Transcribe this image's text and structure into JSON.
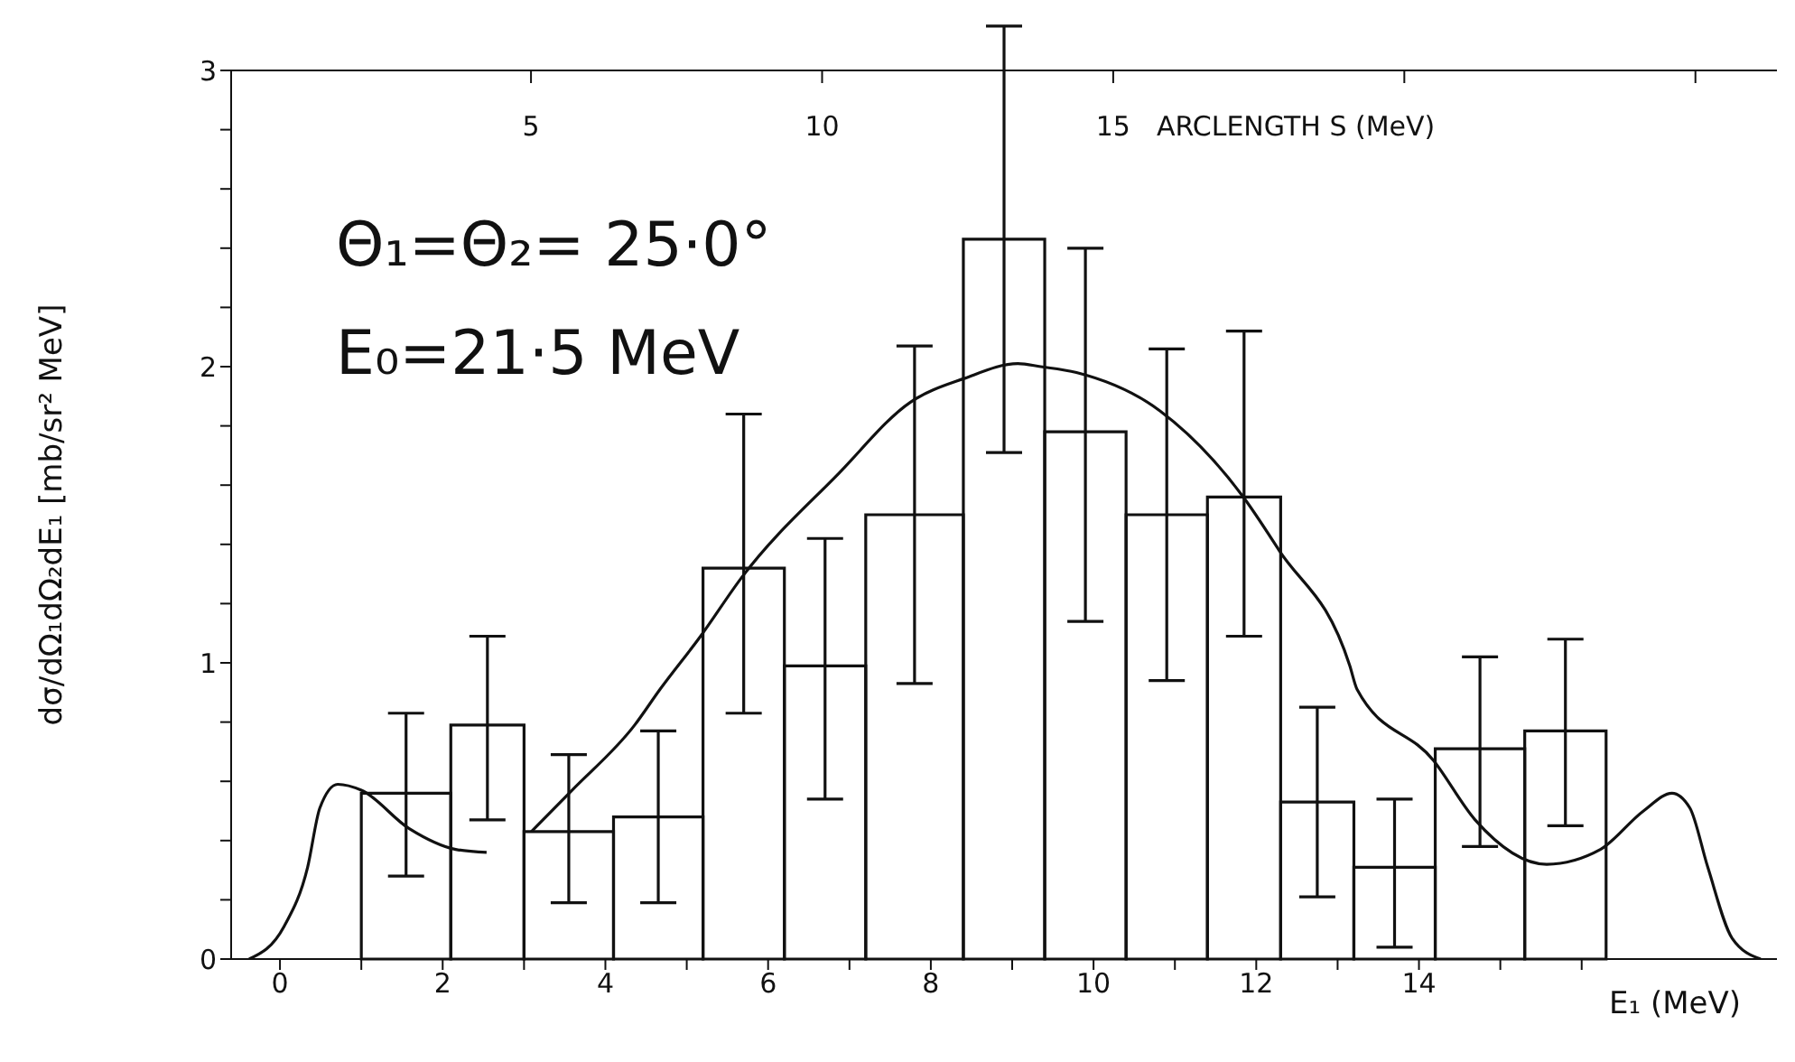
{
  "chart_data": {
    "type": "histogram",
    "xlabel": "E₁ (MeV)",
    "x2label": "ARCLENGTH S (MeV)",
    "ylabel": "dσ/dΩ₁dΩ₂dE₁ [mb/sr² MeV]",
    "annotations": [
      "Θ₁=Θ₂= 25·0°",
      "E₀=21·5 MeV"
    ],
    "series": [
      {
        "type": "histogram",
        "color": "#111111",
        "bins": [
          1.0,
          2.1,
          3.0,
          4.1,
          5.2,
          6.2,
          7.2,
          8.4,
          9.4,
          10.4,
          11.4,
          12.3,
          13.2,
          14.2,
          15.3,
          16.3
        ],
        "values": [
          0.56,
          0.79,
          0.43,
          0.48,
          1.32,
          0.99,
          1.5,
          2.43,
          1.78,
          1.5,
          1.56,
          0.53,
          0.31,
          0.71,
          0.77
        ],
        "errors": [
          [
            0.28,
            0.83
          ],
          [
            0.47,
            1.09
          ],
          [
            0.19,
            0.69
          ],
          [
            0.19,
            0.77
          ],
          [
            0.83,
            1.84
          ],
          [
            0.54,
            1.42
          ],
          [
            0.93,
            2.07
          ],
          [
            1.71,
            3.15
          ],
          [
            1.14,
            2.4
          ],
          [
            0.94,
            2.06
          ],
          [
            1.09,
            2.12
          ],
          [
            0.21,
            0.85
          ],
          [
            0.04,
            0.54
          ],
          [
            0.38,
            1.02
          ],
          [
            0.45,
            1.08
          ]
        ]
      },
      {
        "type": "line",
        "color": "#111111",
        "x": [
          -0.38,
          0.05,
          0.34,
          0.49,
          0.71,
          1.0,
          1.59,
          2.16,
          2.54,
          2.8,
          3.09,
          3.59,
          4.36,
          4.67,
          5.17,
          5.68,
          6.87,
          7.75,
          8.41,
          9.07,
          9.35,
          9.79,
          10.82,
          11.84,
          12.28,
          13.15,
          13.24,
          14.18,
          14.69,
          15.57,
          16.23,
          16.76,
          17.11,
          17.33,
          17.55,
          17.85,
          18.2
        ],
        "values": [
          0,
          0.11,
          0.31,
          0.51,
          0.59,
          0.57,
          0.44,
          0.37,
          0.36,
          null,
          0.43,
          0.57,
          0.79,
          0.91,
          1.09,
          1.29,
          1.64,
          1.88,
          1.96,
          2.01,
          2.0,
          1.98,
          1.85,
          1.56,
          1.38,
          0.99,
          0.91,
          0.67,
          0.47,
          0.32,
          0.37,
          0.5,
          0.56,
          0.51,
          0.31,
          0.07,
          0
        ]
      }
    ],
    "xlim": [
      -0.6,
      18.4
    ],
    "xticks": [
      0,
      {
        "value": 1,
        "label": null
      },
      2,
      {
        "value": 3,
        "label": null
      },
      4,
      {
        "value": 5,
        "label": null
      },
      6,
      {
        "value": 7,
        "label": null
      },
      8,
      {
        "value": 9,
        "label": null
      },
      10,
      {
        "value": 11,
        "label": null
      },
      12,
      {
        "value": 13,
        "label": null
      },
      14,
      {
        "value": 15,
        "label": null
      },
      {
        "value": 16,
        "label": null
      }
    ],
    "x2lim": [
      -0.15,
      26.4
    ],
    "x2ticks": [
      5,
      10,
      15,
      {
        "value": 20,
        "label": null
      },
      {
        "value": 25,
        "label": null
      }
    ],
    "ylim": [
      0,
      3
    ],
    "yticks": [
      0,
      {
        "value": 0.2,
        "label": null
      },
      {
        "value": 0.4,
        "label": null
      },
      {
        "value": 0.6,
        "label": null
      },
      {
        "value": 0.8,
        "label": null
      },
      1,
      {
        "value": 1.2,
        "label": null
      },
      {
        "value": 1.4,
        "label": null
      },
      {
        "value": 1.6,
        "label": null
      },
      {
        "value": 1.8,
        "label": null
      },
      2,
      {
        "value": 2.2,
        "label": null
      },
      {
        "value": 2.4,
        "label": null
      },
      {
        "value": 2.6,
        "label": null
      },
      {
        "value": 2.8,
        "label": null
      },
      3
    ]
  }
}
